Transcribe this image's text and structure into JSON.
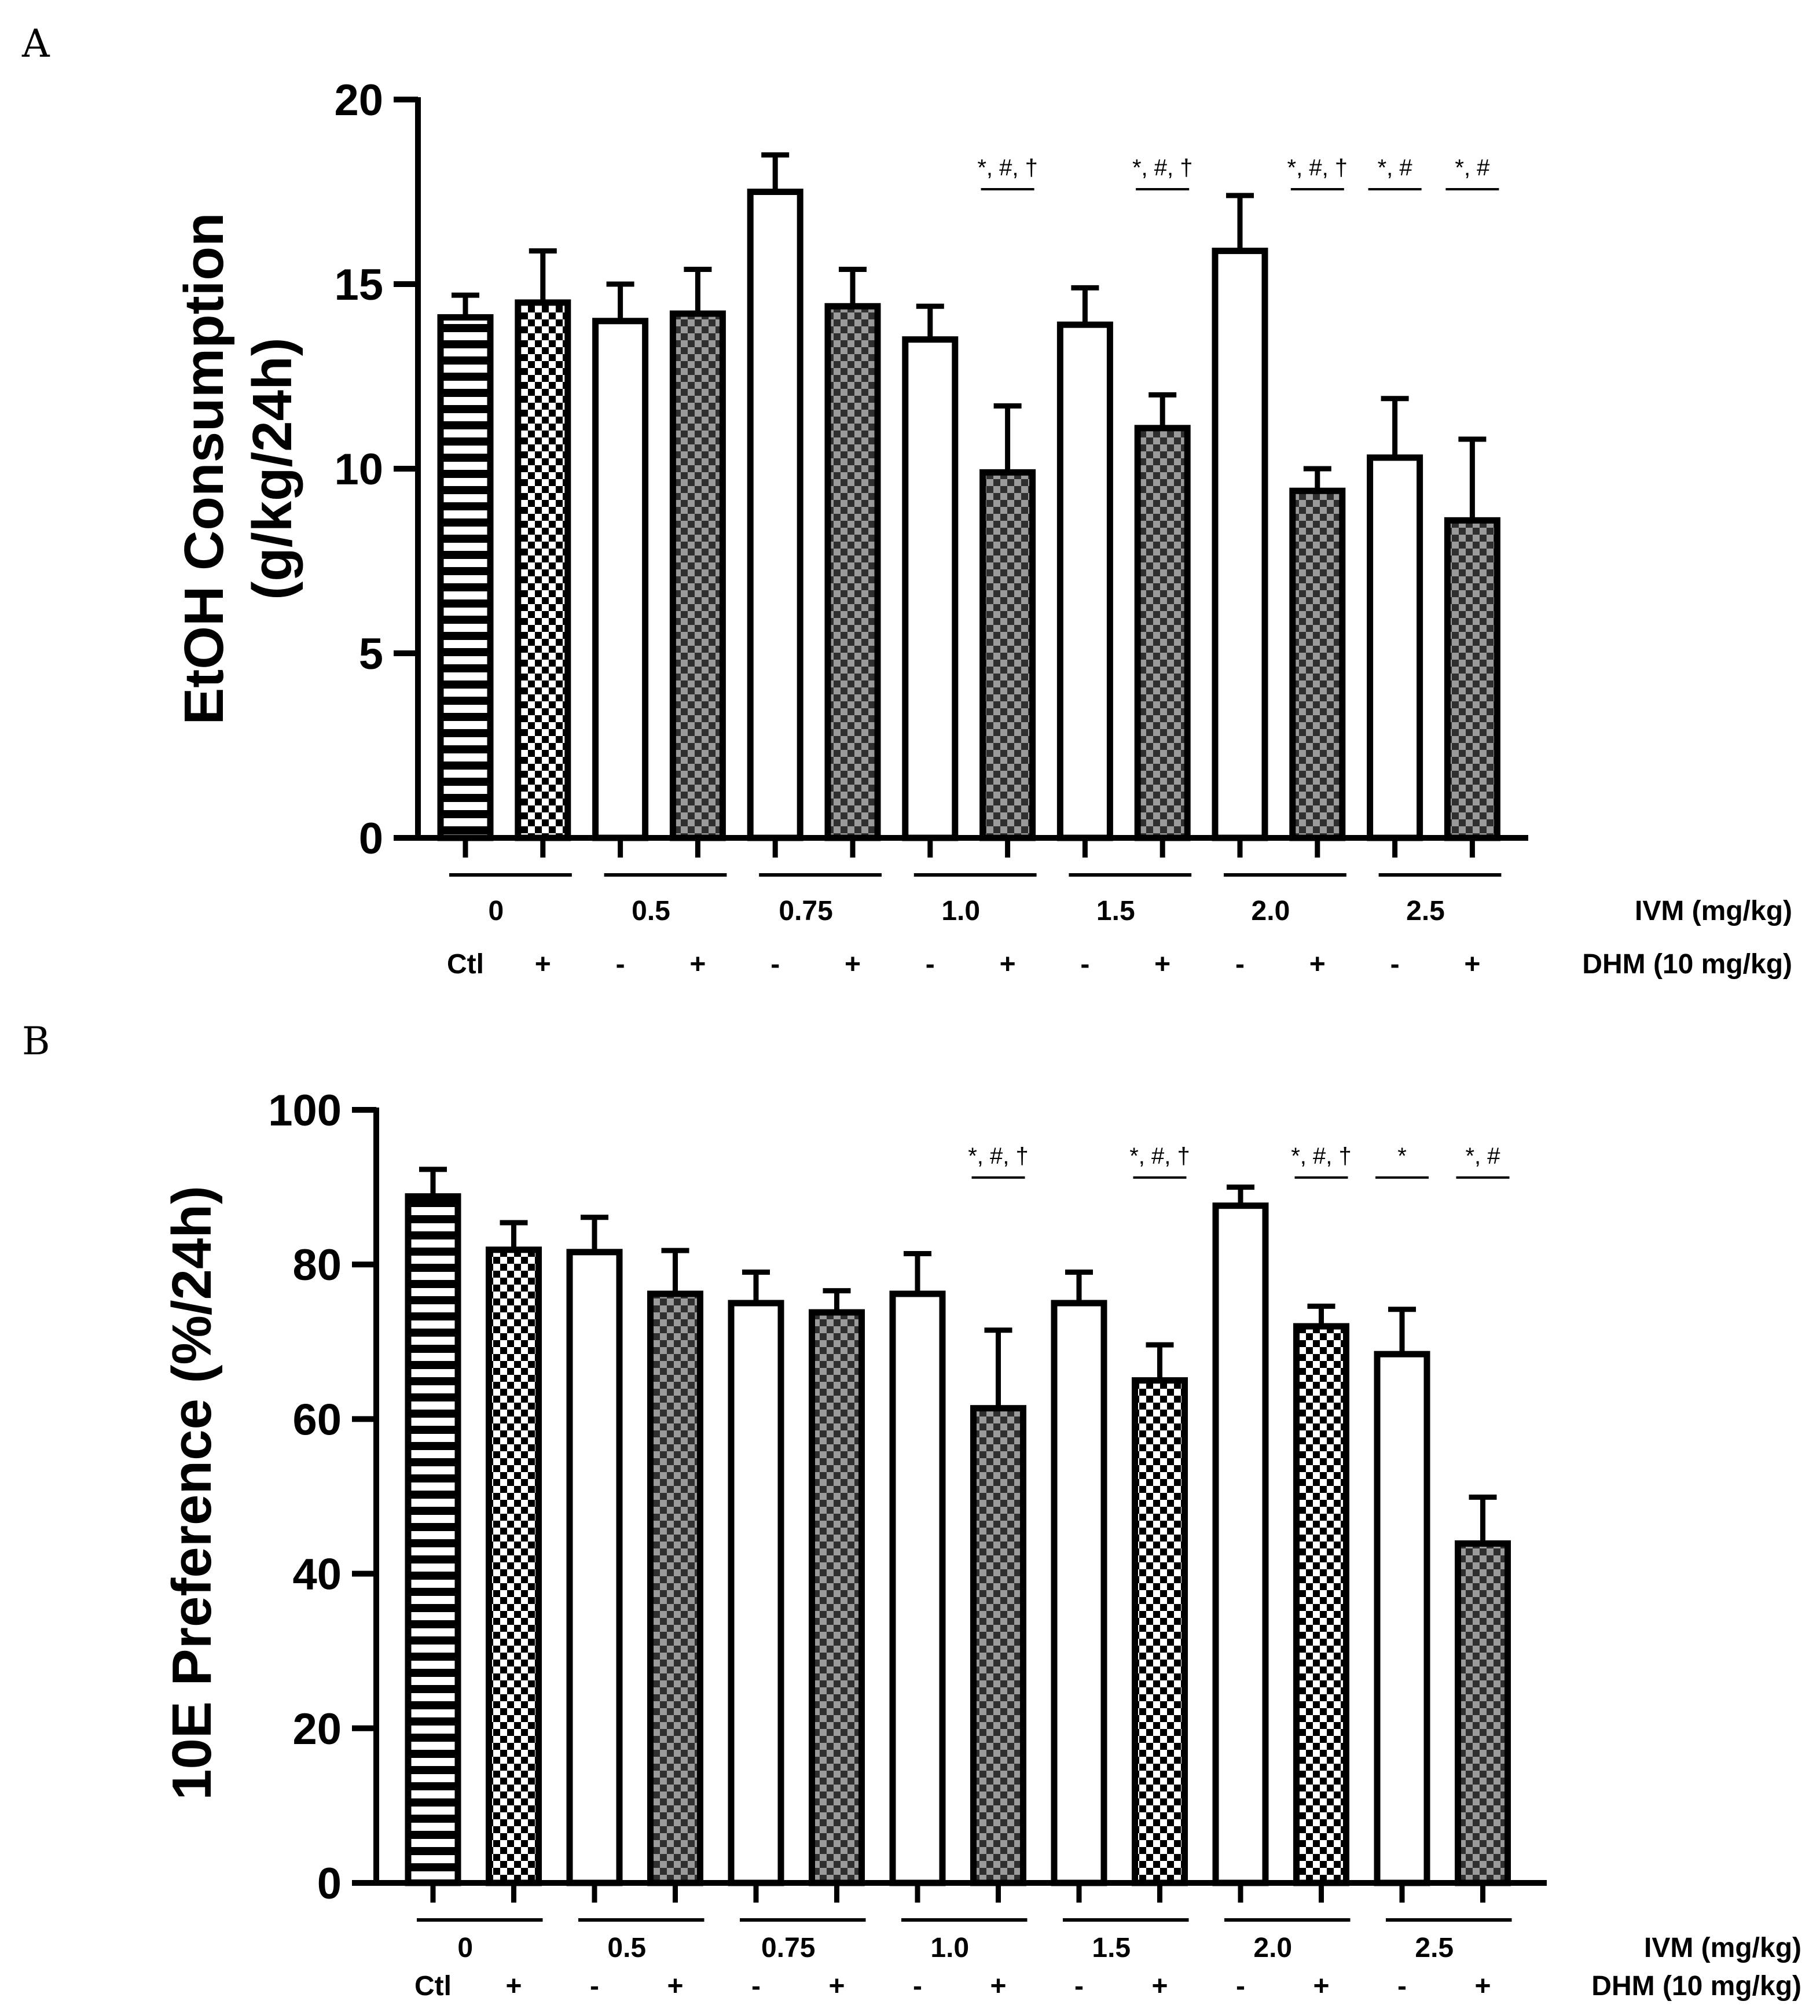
{
  "chart_data": [
    {
      "panel": "A",
      "type": "bar",
      "ylabel_line1": "EtOH Consumption",
      "ylabel_line2": "(g/kg/24h)",
      "ylim": [
        0,
        20
      ],
      "yticks": [
        0,
        5,
        10,
        15,
        20
      ],
      "ivm_row_label": "IVM (mg/kg)",
      "dhm_row_label": "DHM (10 mg/kg)",
      "ivm_groups": [
        "0",
        "0.5",
        "0.75",
        "1.0",
        "1.5",
        "2.0",
        "2.5"
      ],
      "dhm_labels": [
        "Ctl",
        "+",
        "-",
        "+",
        "-",
        "+",
        "-",
        "+",
        "-",
        "+",
        "-",
        "+",
        "-",
        "+"
      ],
      "values": [
        14.1,
        14.5,
        14.0,
        14.2,
        17.5,
        14.4,
        13.5,
        9.9,
        13.9,
        11.1,
        15.9,
        9.4,
        10.3,
        8.6
      ],
      "errors": [
        0.6,
        1.4,
        1.0,
        1.2,
        1.0,
        1.0,
        0.9,
        1.8,
        1.0,
        0.9,
        1.5,
        0.6,
        1.6,
        2.2
      ],
      "annotations": [
        {
          "text": "*, #, †",
          "over_bar": 7
        },
        {
          "text": "*, #, †",
          "over_bar": 9
        },
        {
          "text": "*, #, †",
          "over_bar": 11
        },
        {
          "text": "*, #",
          "over_bar": 12
        },
        {
          "text": "*, #",
          "over_bar": 13
        }
      ]
    },
    {
      "panel": "B",
      "type": "bar",
      "ylabel_line1": "10E Preference (%/24h)",
      "ylabel_line2": "",
      "ylim": [
        0,
        100
      ],
      "yticks": [
        0,
        20,
        40,
        60,
        80,
        100
      ],
      "ivm_row_label": "IVM (mg/kg)",
      "dhm_row_label": "DHM (10 mg/kg)",
      "ivm_groups": [
        "0",
        "0.5",
        "0.75",
        "1.0",
        "1.5",
        "2.0",
        "2.5"
      ],
      "dhm_labels": [
        "Ctl",
        "+",
        "-",
        "+",
        "-",
        "+",
        "-",
        "+",
        "-",
        "+",
        "-",
        "+",
        "-",
        "+"
      ],
      "values": [
        88.8,
        81.9,
        81.6,
        76.2,
        75.0,
        73.8,
        76.2,
        61.4,
        75.0,
        65.0,
        87.6,
        72.0,
        68.4,
        43.9
      ],
      "errors": [
        3.5,
        3.5,
        4.5,
        5.6,
        4.0,
        2.8,
        5.2,
        10.1,
        4.0,
        4.6,
        2.4,
        2.6,
        5.8,
        6.0
      ],
      "annotations": [
        {
          "text": "*, #, †",
          "over_bar": 7
        },
        {
          "text": "*, #, †",
          "over_bar": 9
        },
        {
          "text": "*, #, †",
          "over_bar": 11
        },
        {
          "text": "*",
          "over_bar": 12
        },
        {
          "text": "*, #",
          "over_bar": 13
        }
      ]
    }
  ]
}
